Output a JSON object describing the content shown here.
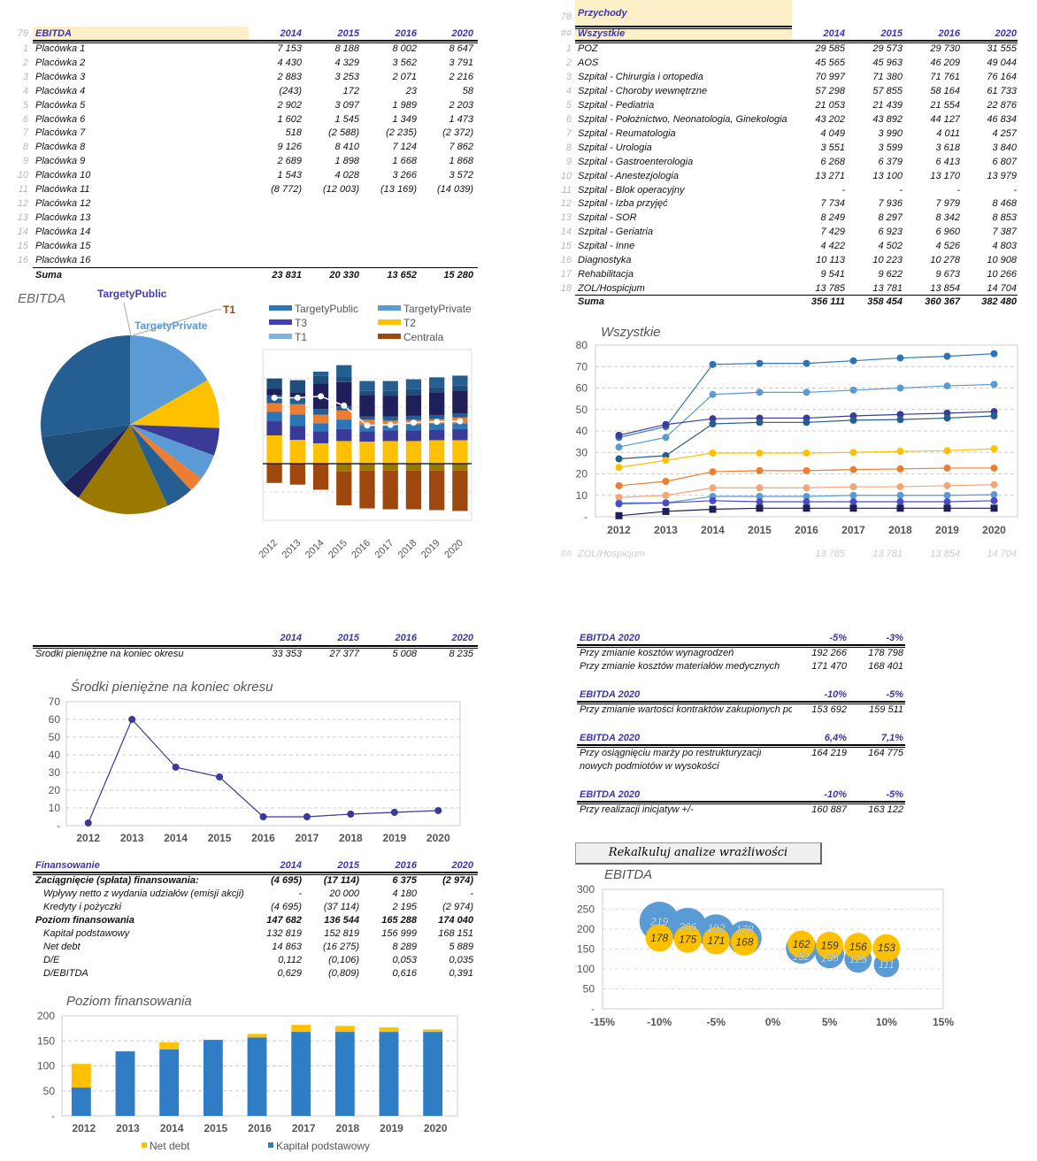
{
  "years4": [
    "2014",
    "2015",
    "2016",
    "2020"
  ],
  "ebitda_table": {
    "row_ref": "79",
    "title": "EBITDA",
    "rows": [
      {
        "n": "1",
        "label": "Placówka 1",
        "v": [
          "7 153",
          "8 188",
          "8 002",
          "8 647"
        ]
      },
      {
        "n": "2",
        "label": "Placówka 2",
        "v": [
          "4 430",
          "4 329",
          "3 562",
          "3 791"
        ]
      },
      {
        "n": "3",
        "label": "Placówka 3",
        "v": [
          "2 883",
          "3 253",
          "2 071",
          "2 216"
        ]
      },
      {
        "n": "4",
        "label": "Placówka 4",
        "v": [
          "(243)",
          "172",
          "23",
          "58"
        ]
      },
      {
        "n": "5",
        "label": "Placówka 5",
        "v": [
          "2 902",
          "3 097",
          "1 989",
          "2 203"
        ]
      },
      {
        "n": "6",
        "label": "Placówka 6",
        "v": [
          "1 602",
          "1 545",
          "1 349",
          "1 473"
        ]
      },
      {
        "n": "7",
        "label": "Placówka 7",
        "v": [
          "518",
          "(2 588)",
          "(2 235)",
          "(2 372)"
        ]
      },
      {
        "n": "8",
        "label": "Placówka 8",
        "v": [
          "9 126",
          "8 410",
          "7 124",
          "7 862"
        ]
      },
      {
        "n": "9",
        "label": "Placówka 9",
        "v": [
          "2 689",
          "1 898",
          "1 668",
          "1 868"
        ]
      },
      {
        "n": "10",
        "label": "Placówka 10",
        "v": [
          "1 543",
          "4 028",
          "3 266",
          "3 572"
        ]
      },
      {
        "n": "11",
        "label": "Placówka 11",
        "v": [
          "(8 772)",
          "(12 003)",
          "(13 169)",
          "(14 039)"
        ]
      },
      {
        "n": "12",
        "label": "Placówka 12",
        "v": [
          "",
          "",
          "",
          ""
        ]
      },
      {
        "n": "13",
        "label": "Placówka 13",
        "v": [
          "",
          "",
          "",
          ""
        ]
      },
      {
        "n": "14",
        "label": "Placówka 14",
        "v": [
          "",
          "",
          "",
          ""
        ]
      },
      {
        "n": "15",
        "label": "Placówka 15",
        "v": [
          "",
          "",
          "",
          ""
        ]
      },
      {
        "n": "16",
        "label": "Placówka 16",
        "v": [
          "",
          "",
          "",
          ""
        ]
      }
    ],
    "total": {
      "label": "Suma",
      "v": [
        "23 831",
        "20 330",
        "13 652",
        "15 280"
      ]
    }
  },
  "przychody_table": {
    "row_ref": "78",
    "title": "Przychody",
    "sub_ref": "##",
    "subtitle": "Wszystkie",
    "rows": [
      {
        "n": "1",
        "label": "POZ",
        "v": [
          "29 585",
          "29 573",
          "29 730",
          "31 555"
        ]
      },
      {
        "n": "2",
        "label": "AOS",
        "v": [
          "45 565",
          "45 963",
          "46 209",
          "49 044"
        ]
      },
      {
        "n": "3",
        "label": "Szpital - Chirurgia i ortopedia",
        "v": [
          "70 997",
          "71 380",
          "71 761",
          "76 164"
        ]
      },
      {
        "n": "4",
        "label": "Szpital - Choroby wewnętrzne",
        "v": [
          "57 298",
          "57 855",
          "58 164",
          "61 733"
        ]
      },
      {
        "n": "5",
        "label": "Szpital - Pediatria",
        "v": [
          "21 053",
          "21 439",
          "21 554",
          "22 876"
        ]
      },
      {
        "n": "6",
        "label": "Szpital - Położnictwo, Neonatologia, Ginekologia",
        "v": [
          "43 202",
          "43 892",
          "44 127",
          "46 834"
        ]
      },
      {
        "n": "7",
        "label": "Szpital - Reumatologia",
        "v": [
          "4 049",
          "3 990",
          "4 011",
          "4 257"
        ]
      },
      {
        "n": "8",
        "label": "Szpital - Urologia",
        "v": [
          "3 551",
          "3 599",
          "3 618",
          "3 840"
        ]
      },
      {
        "n": "9",
        "label": "Szpital - Gastroenterologia",
        "v": [
          "6 268",
          "6 379",
          "6 413",
          "6 807"
        ]
      },
      {
        "n": "10",
        "label": "Szpital - Anestezjologia",
        "v": [
          "13 271",
          "13 100",
          "13 170",
          "13 979"
        ]
      },
      {
        "n": "11",
        "label": "Szpital - Blok operacyjny",
        "v": [
          "-",
          "-",
          "-",
          "-"
        ]
      },
      {
        "n": "12",
        "label": "Szpital - Izba przyjęć",
        "v": [
          "7 734",
          "7 936",
          "7 979",
          "8 468"
        ]
      },
      {
        "n": "13",
        "label": "Szpital - SOR",
        "v": [
          "8 249",
          "8 297",
          "8 342",
          "8 853"
        ]
      },
      {
        "n": "14",
        "label": "Szpital - Geriatria",
        "v": [
          "7 429",
          "6 923",
          "6 960",
          "7 387"
        ]
      },
      {
        "n": "15",
        "label": "Szpital - Inne",
        "v": [
          "4 422",
          "4 502",
          "4 526",
          "4 803"
        ]
      },
      {
        "n": "16",
        "label": "Diagnostyka",
        "v": [
          "10 113",
          "10 223",
          "10 278",
          "10 908"
        ]
      },
      {
        "n": "17",
        "label": "Rehabilitacja",
        "v": [
          "9 541",
          "9 622",
          "9 673",
          "10 266"
        ]
      },
      {
        "n": "18",
        "label": "ZOL/Hospicjum",
        "v": [
          "13 785",
          "13 781",
          "13 854",
          "14 704"
        ]
      }
    ],
    "total": {
      "label": "Suma",
      "v": [
        "356 111",
        "358 454",
        "360 367",
        "382 480"
      ]
    },
    "ghost_row": {
      "n": "##",
      "label": "ZOL/Hospicjum",
      "v": [
        "13 785",
        "13 781",
        "13 854",
        "14 704"
      ]
    }
  },
  "srodki_table": {
    "label": "Środki pieniężne na koniec okresu",
    "v": [
      "33 353",
      "27 377",
      "5 008",
      "8 235"
    ]
  },
  "finansowanie_table": {
    "title": "Finansowanie",
    "rows": [
      {
        "label": "Zaciągnięcie (spłata) finansowania:",
        "bold": true,
        "indent": false,
        "v": [
          "(4 695)",
          "(17 114)",
          "6 375",
          "(2 974)"
        ]
      },
      {
        "label": "Wpływy netto z wydania udziałów (emisji akcji)",
        "bold": false,
        "indent": true,
        "v": [
          "-",
          "20 000",
          "4 180",
          "-"
        ]
      },
      {
        "label": "Kredyty i pożyczki",
        "bold": false,
        "indent": true,
        "v": [
          "(4 695)",
          "(37 114)",
          "2 195",
          "(2 974)"
        ]
      },
      {
        "label": "Poziom finansowania",
        "bold": true,
        "indent": false,
        "v": [
          "147 682",
          "136 544",
          "165 288",
          "174 040"
        ]
      },
      {
        "label": "Kapitał podstawowy",
        "bold": false,
        "indent": true,
        "v": [
          "132 819",
          "152 819",
          "156 999",
          "168 151"
        ]
      },
      {
        "label": "Net debt",
        "bold": false,
        "indent": true,
        "v": [
          "14 863",
          "(16 275)",
          "8 289",
          "5 889"
        ]
      },
      {
        "label": "D/E",
        "bold": false,
        "indent": true,
        "v": [
          "0,112",
          "(0,106)",
          "0,053",
          "0,035"
        ]
      },
      {
        "label": "D/EBITDA",
        "bold": false,
        "indent": true,
        "v": [
          "0,629",
          "(0,809)",
          "0,616",
          "0,391"
        ]
      }
    ]
  },
  "sensitivity": [
    {
      "title": "EBITDA 2020",
      "cols": [
        "-5%",
        "-3%"
      ],
      "rows": [
        {
          "label": "Przy zmianie kosztów wynagrodzeń",
          "v": [
            "192 266",
            "178 798"
          ]
        },
        {
          "label": "Przy zmianie kosztów materiałów medycznych",
          "v": [
            "171 470",
            "168 401"
          ]
        }
      ]
    },
    {
      "title": "EBITDA 2020",
      "cols": [
        "-10%",
        "-5%"
      ],
      "rows": [
        {
          "label": "Przy zmianie wartości kontraktów zakupionych pc",
          "v": [
            "153 692",
            "159 511"
          ]
        }
      ]
    },
    {
      "title": "EBITDA 2020",
      "cols": [
        "6,4%",
        "7,1%"
      ],
      "rows": [
        {
          "label": "Przy osiągnięciu marży po restrukturyzacji",
          "v": [
            "164 219",
            "164 775"
          ]
        },
        {
          "label": "nowych podmiotów w wysokości",
          "v": [
            "",
            ""
          ]
        }
      ]
    },
    {
      "title": "EBITDA 2020",
      "cols": [
        "-10%",
        "-5%"
      ],
      "rows": [
        {
          "label": "Przy realizacji inicjatyw +/-",
          "v": [
            "160 887",
            "163 122"
          ]
        }
      ]
    }
  ],
  "recalc_button": "Rekalkuluj analize wrażliwości",
  "chart_data": [
    {
      "type": "pie",
      "title": "EBITDA",
      "labels": [
        "TargetyPublic",
        "TargetyPrivate",
        "T1"
      ],
      "shares_pct": [
        16.7,
        8.9,
        5.0,
        4.7,
        2.8,
        5.0,
        16.7,
        3.6,
        9.4,
        27.2
      ],
      "colors": [
        "#5b9bd5",
        "#ffc000",
        "#3a3a98",
        "#5b9bd5",
        "#ed7d31",
        "#255e91",
        "#9b7800",
        "#22235e",
        "#1f4e79",
        "#255e91"
      ]
    },
    {
      "type": "bar",
      "stacked": true,
      "categories": [
        "2012",
        "2013",
        "2014",
        "2015",
        "2016",
        "2017",
        "2018",
        "2019",
        "2020"
      ],
      "legend": [
        "TargetyPublic",
        "TargetyPrivate",
        "T3",
        "T2",
        "T1",
        "Centrala"
      ],
      "legend_colors": [
        "#2e75b6",
        "#5b9bd5",
        "#4040b8",
        "#ffc000",
        "#7fb0e0",
        "#9e480e"
      ],
      "series": [
        {
          "color": "#ffc000",
          "values": [
            1.0,
            0.84,
            0.72,
            0.8,
            0.78,
            0.8,
            0.8,
            0.83,
            0.83
          ]
        },
        {
          "color": "#3a3a98",
          "values": [
            0.5,
            0.5,
            0.43,
            0.43,
            0.37,
            0.37,
            0.37,
            0.37,
            0.4
          ]
        },
        {
          "color": "#2e75b6",
          "values": [
            0.34,
            0.4,
            0.28,
            0.33,
            0.22,
            0.2,
            0.22,
            0.22,
            0.2
          ]
        },
        {
          "color": "#ed7d31",
          "values": [
            0.3,
            0.36,
            0.3,
            0.32,
            0.18,
            0.15,
            0.15,
            0.15,
            0.2
          ]
        },
        {
          "color": "#255e91",
          "values": [
            0.28,
            0.2,
            0.2,
            0.15,
            0.12,
            0.15,
            0.15,
            0.15,
            0.15
          ]
        },
        {
          "color": "#1f1f5a",
          "values": [
            0.22,
            0.22,
            0.9,
            0.85,
            0.75,
            0.72,
            0.74,
            0.78,
            0.8
          ]
        },
        {
          "color": "#1f4e79",
          "values": [
            0.37,
            0.43,
            0.27,
            0.2,
            0.15,
            0.18,
            0.2,
            0.2,
            0.18
          ]
        },
        {
          "color": "#255e91",
          "values": [
            0,
            0,
            0.15,
            0.4,
            0.35,
            0.35,
            0.35,
            0.35,
            0.35
          ]
        },
        {
          "color": "#9b7800",
          "values": [
            0,
            0,
            0,
            -0.27,
            -0.24,
            -0.24,
            -0.24,
            -0.24,
            -0.24
          ]
        },
        {
          "color": "#9e480e",
          "values": [
            -0.68,
            -0.74,
            -0.92,
            -1.2,
            -1.34,
            -1.37,
            -1.37,
            -1.4,
            -1.43
          ]
        }
      ],
      "line": {
        "color": "#ffffff",
        "values": [
          2.33,
          2.33,
          2.38,
          2.05,
          1.35,
          1.37,
          1.45,
          1.48,
          1.5
        ]
      },
      "ylim": [
        -2,
        4
      ],
      "grid": true
    },
    {
      "type": "line",
      "title": "Wszystkie",
      "categories": [
        "2012",
        "2013",
        "2014",
        "2015",
        "2016",
        "2017",
        "2018",
        "2019",
        "2020"
      ],
      "yticks": [
        "-",
        "10",
        "20",
        "30",
        "40",
        "50",
        "60",
        "70",
        "80"
      ],
      "ylim": [
        0,
        80
      ],
      "grid": true,
      "series": [
        {
          "color": "#2e75b6",
          "marker": "circle",
          "values": [
            37,
            42,
            71,
            71.5,
            71.5,
            72.7,
            74,
            74.8,
            76
          ]
        },
        {
          "color": "#5b9bd5",
          "marker": "circle",
          "values": [
            32.5,
            37,
            57,
            58,
            58,
            59,
            60,
            61,
            61.7
          ]
        },
        {
          "color": "#3a3a98",
          "marker": "circle",
          "values": [
            38,
            43,
            45.7,
            46,
            46,
            47,
            47.7,
            48.3,
            49
          ]
        },
        {
          "color": "#255e91",
          "marker": "circle",
          "values": [
            27,
            28.5,
            43.3,
            44,
            44,
            45,
            45.3,
            46,
            47
          ]
        },
        {
          "color": "#ffc000",
          "marker": "circle",
          "values": [
            23,
            26.3,
            29.7,
            29.7,
            29.7,
            30,
            30.5,
            30.8,
            31.7
          ]
        },
        {
          "color": "#ed7d31",
          "marker": "circle",
          "values": [
            14.5,
            16.5,
            21,
            21.5,
            21.5,
            22,
            22.3,
            22.7,
            22.7
          ]
        },
        {
          "color": "#f4a676",
          "marker": "circle",
          "values": [
            9,
            10,
            13.5,
            13.5,
            13.5,
            14,
            14,
            14.5,
            15
          ]
        },
        {
          "color": "#5b9bd5",
          "marker": "circle",
          "values": [
            6.5,
            6.5,
            9.5,
            9.5,
            9.5,
            10,
            10,
            10,
            10.3
          ]
        },
        {
          "color": "#4a4ac8",
          "marker": "circle",
          "values": [
            6,
            6.5,
            7.5,
            7,
            7,
            7,
            7,
            7,
            7.5
          ]
        },
        {
          "color": "#1f1f5a",
          "marker": "square",
          "values": [
            0.5,
            2.5,
            3.5,
            4,
            4,
            4,
            4,
            4,
            4
          ]
        }
      ]
    },
    {
      "type": "line",
      "title": "Środki pieniężne  na koniec okresu",
      "categories": [
        "2012",
        "2013",
        "2014",
        "2015",
        "2016",
        "2017",
        "2018",
        "2019",
        "2020"
      ],
      "yticks": [
        "-",
        "10",
        "20",
        "30",
        "40",
        "50",
        "60",
        "70"
      ],
      "ylim": [
        0,
        70
      ],
      "grid": true,
      "series": [
        {
          "color": "#3a3a98",
          "values": [
            1.5,
            60,
            33,
            27.5,
            5,
            5,
            6.5,
            7.5,
            8.5
          ]
        }
      ]
    },
    {
      "type": "bar",
      "stacked": true,
      "title": "Poziom finansowania",
      "categories": [
        "2012",
        "2013",
        "2014",
        "2015",
        "2016",
        "2017",
        "2018",
        "2019",
        "2020"
      ],
      "yticks": [
        "-",
        "50",
        "100",
        "150",
        "200"
      ],
      "ylim": [
        0,
        200
      ],
      "grid": true,
      "legend": "bottom",
      "series": [
        {
          "name": "Kapitał podstawowy",
          "color": "#2e7dc5",
          "values": [
            57,
            129,
            133,
            152,
            157,
            168,
            168,
            168,
            168
          ]
        },
        {
          "name": "Net debt",
          "color": "#ffc000",
          "values": [
            47,
            0,
            14,
            0,
            7,
            14,
            12,
            9,
            5
          ]
        }
      ]
    },
    {
      "type": "scatter",
      "subtype": "bubble",
      "title": "EBITDA",
      "xticks": [
        "-15%",
        "-10%",
        "-5%",
        "0%",
        "5%",
        "10%",
        "15%"
      ],
      "yticks": [
        "-",
        "50",
        "100",
        "150",
        "200",
        "250",
        "300"
      ],
      "xlim": [
        -15,
        15
      ],
      "ylim": [
        0,
        300
      ],
      "grid": true,
      "series": [
        {
          "color": "#5b9bd5",
          "x": [
            -10,
            -7.5,
            -5,
            -2.5,
            2.5,
            5,
            7.5,
            10
          ],
          "y": [
            219,
            206,
            192,
            178,
            152,
            138,
            125,
            111
          ]
        },
        {
          "color": "#ffc000",
          "x": [
            -10,
            -7.5,
            -5,
            -2.5,
            2.5,
            5,
            7.5,
            10
          ],
          "y": [
            178,
            175,
            171,
            168,
            162,
            159,
            156,
            153
          ]
        }
      ]
    }
  ]
}
